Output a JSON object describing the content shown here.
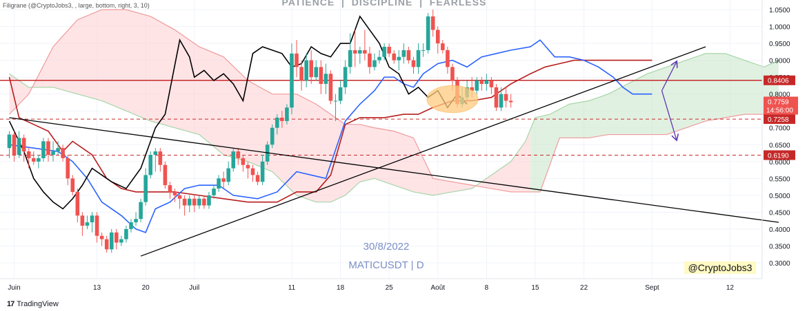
{
  "watermark_header": "Filigrane (@CryptoJobs3, , large, bottom, right, 3, 10)",
  "banner": "PATIENCE  |  DISCIPLINE  |  FEARLESS",
  "overlay_date": "30/8/2022",
  "overlay_symbol": "MATICUSDT | D",
  "signature": "@CryptoJobs3",
  "brand": "TradingView",
  "colors": {
    "up": "#26a69a",
    "down": "#ef5350",
    "conversion": "#2962ff",
    "base": "#b71c1c",
    "lagging": "#000000",
    "cloud_bull": "#c8e6c9",
    "cloud_bear": "#ffcdd2",
    "level": "#c62828",
    "price_badge": "#ef5350"
  },
  "chart_data": {
    "type": "candlestick",
    "symbol": "MATICUSDT",
    "timeframe": "D",
    "ylim": [
      0.26,
      1.07
    ],
    "y_ticks": [
      "1.0500",
      "1.0000",
      "0.9500",
      "0.9000",
      "0.8500",
      "0.8000",
      "0.7500",
      "0.7000",
      "0.6500",
      "0.6000",
      "0.5500",
      "0.5000",
      "0.4500",
      "0.4000",
      "0.3500",
      "0.3000"
    ],
    "x_ticks": [
      {
        "label": "Juin",
        "i": 2
      },
      {
        "label": "13",
        "i": 19
      },
      {
        "label": "20",
        "i": 29
      },
      {
        "label": "Juil",
        "i": 39
      },
      {
        "label": "11",
        "i": 59
      },
      {
        "label": "18",
        "i": 69
      },
      {
        "label": "25",
        "i": 79
      },
      {
        "label": "Août",
        "i": 89
      },
      {
        "label": "8",
        "i": 99
      },
      {
        "label": "15",
        "i": 109
      },
      {
        "label": "22",
        "i": 119
      },
      {
        "label": "Sept",
        "i": 133
      },
      {
        "label": "12",
        "i": 149
      }
    ],
    "candles_first_index": 1,
    "candles": [
      [
        0.64,
        0.68,
        0.69,
        0.61
      ],
      [
        0.68,
        0.62,
        0.69,
        0.6
      ],
      [
        0.62,
        0.67,
        0.69,
        0.61
      ],
      [
        0.67,
        0.63,
        0.68,
        0.6
      ],
      [
        0.63,
        0.61,
        0.64,
        0.58
      ],
      [
        0.61,
        0.6,
        0.63,
        0.59
      ],
      [
        0.6,
        0.61,
        0.62,
        0.58
      ],
      [
        0.61,
        0.66,
        0.67,
        0.6
      ],
      [
        0.66,
        0.62,
        0.67,
        0.6
      ],
      [
        0.62,
        0.63,
        0.66,
        0.6
      ],
      [
        0.63,
        0.64,
        0.66,
        0.62
      ],
      [
        0.64,
        0.61,
        0.65,
        0.6
      ],
      [
        0.61,
        0.55,
        0.62,
        0.53
      ],
      [
        0.55,
        0.51,
        0.56,
        0.5
      ],
      [
        0.51,
        0.44,
        0.52,
        0.42
      ],
      [
        0.44,
        0.41,
        0.45,
        0.38
      ],
      [
        0.41,
        0.42,
        0.44,
        0.4
      ],
      [
        0.42,
        0.44,
        0.45,
        0.39
      ],
      [
        0.44,
        0.38,
        0.45,
        0.36
      ],
      [
        0.38,
        0.37,
        0.39,
        0.35
      ],
      [
        0.37,
        0.34,
        0.38,
        0.33
      ],
      [
        0.34,
        0.39,
        0.4,
        0.33
      ],
      [
        0.39,
        0.36,
        0.4,
        0.34
      ],
      [
        0.36,
        0.37,
        0.38,
        0.35
      ],
      [
        0.37,
        0.4,
        0.41,
        0.36
      ],
      [
        0.4,
        0.42,
        0.43,
        0.39
      ],
      [
        0.42,
        0.43,
        0.45,
        0.41
      ],
      [
        0.43,
        0.48,
        0.49,
        0.42
      ],
      [
        0.48,
        0.56,
        0.58,
        0.47
      ],
      [
        0.56,
        0.62,
        0.63,
        0.55
      ],
      [
        0.62,
        0.63,
        0.64,
        0.57
      ],
      [
        0.63,
        0.59,
        0.64,
        0.57
      ],
      [
        0.59,
        0.53,
        0.6,
        0.52
      ],
      [
        0.53,
        0.51,
        0.54,
        0.49
      ],
      [
        0.51,
        0.5,
        0.52,
        0.48
      ],
      [
        0.5,
        0.49,
        0.51,
        0.46
      ],
      [
        0.49,
        0.47,
        0.5,
        0.44
      ],
      [
        0.47,
        0.49,
        0.5,
        0.45
      ],
      [
        0.49,
        0.47,
        0.5,
        0.45
      ],
      [
        0.47,
        0.49,
        0.5,
        0.46
      ],
      [
        0.49,
        0.47,
        0.5,
        0.46
      ],
      [
        0.47,
        0.5,
        0.51,
        0.46
      ],
      [
        0.5,
        0.52,
        0.53,
        0.49
      ],
      [
        0.52,
        0.55,
        0.56,
        0.51
      ],
      [
        0.55,
        0.54,
        0.57,
        0.52
      ],
      [
        0.54,
        0.58,
        0.6,
        0.53
      ],
      [
        0.58,
        0.63,
        0.64,
        0.57
      ],
      [
        0.63,
        0.61,
        0.64,
        0.59
      ],
      [
        0.61,
        0.59,
        0.62,
        0.57
      ],
      [
        0.59,
        0.58,
        0.6,
        0.55
      ],
      [
        0.58,
        0.56,
        0.59,
        0.54
      ],
      [
        0.56,
        0.54,
        0.57,
        0.53
      ],
      [
        0.54,
        0.6,
        0.62,
        0.53
      ],
      [
        0.6,
        0.65,
        0.66,
        0.59
      ],
      [
        0.65,
        0.7,
        0.71,
        0.64
      ],
      [
        0.7,
        0.73,
        0.74,
        0.68
      ],
      [
        0.73,
        0.72,
        0.75,
        0.7
      ],
      [
        0.72,
        0.76,
        0.77,
        0.71
      ],
      [
        0.76,
        0.92,
        0.95,
        0.74
      ],
      [
        0.92,
        0.88,
        0.96,
        0.85
      ],
      [
        0.88,
        0.84,
        0.9,
        0.81
      ],
      [
        0.84,
        0.9,
        0.92,
        0.82
      ],
      [
        0.9,
        0.85,
        0.93,
        0.83
      ],
      [
        0.85,
        0.88,
        0.9,
        0.84
      ],
      [
        0.88,
        0.83,
        0.9,
        0.8
      ],
      [
        0.83,
        0.86,
        0.89,
        0.8
      ],
      [
        0.86,
        0.78,
        0.87,
        0.77
      ],
      [
        0.78,
        0.78,
        0.8,
        0.72
      ],
      [
        0.78,
        0.82,
        0.84,
        0.77
      ],
      [
        0.82,
        0.88,
        0.9,
        0.8
      ],
      [
        0.88,
        0.93,
        0.98,
        0.86
      ],
      [
        0.93,
        0.92,
        0.99,
        0.88
      ],
      [
        0.92,
        0.93,
        0.94,
        0.89
      ],
      [
        0.93,
        0.92,
        0.99,
        0.9
      ],
      [
        0.92,
        0.88,
        0.94,
        0.86
      ],
      [
        0.88,
        0.9,
        0.92,
        0.87
      ],
      [
        0.9,
        0.91,
        0.93,
        0.89
      ],
      [
        0.91,
        0.94,
        0.95,
        0.9
      ],
      [
        0.94,
        0.92,
        0.95,
        0.91
      ],
      [
        0.92,
        0.9,
        0.93,
        0.89
      ],
      [
        0.9,
        0.91,
        0.93,
        0.87
      ],
      [
        0.91,
        0.93,
        0.95,
        0.89
      ],
      [
        0.93,
        0.9,
        0.94,
        0.89
      ],
      [
        0.9,
        0.88,
        0.91,
        0.86
      ],
      [
        0.88,
        0.93,
        0.95,
        0.86
      ],
      [
        0.93,
        0.93,
        0.95,
        0.91
      ],
      [
        0.93,
        1.03,
        1.04,
        0.92
      ],
      [
        1.03,
        0.99,
        1.05,
        0.97
      ],
      [
        0.99,
        0.95,
        1.0,
        0.92
      ],
      [
        0.95,
        0.93,
        0.96,
        0.92
      ],
      [
        0.93,
        0.88,
        0.94,
        0.86
      ],
      [
        0.88,
        0.84,
        0.89,
        0.81
      ],
      [
        0.84,
        0.77,
        0.85,
        0.76
      ],
      [
        0.77,
        0.79,
        0.82,
        0.76
      ],
      [
        0.79,
        0.82,
        0.84,
        0.78
      ],
      [
        0.82,
        0.81,
        0.85,
        0.79
      ],
      [
        0.81,
        0.84,
        0.85,
        0.8
      ],
      [
        0.84,
        0.83,
        0.85,
        0.81
      ],
      [
        0.83,
        0.84,
        0.86,
        0.81
      ],
      [
        0.84,
        0.82,
        0.85,
        0.8
      ],
      [
        0.82,
        0.76,
        0.83,
        0.75
      ],
      [
        0.76,
        0.8,
        0.82,
        0.75
      ],
      [
        0.8,
        0.78,
        0.82,
        0.76
      ],
      [
        0.78,
        0.7759,
        0.8,
        0.76
      ]
    ],
    "conversion_line": [
      [
        1,
        0.65
      ],
      [
        6,
        0.64
      ],
      [
        11,
        0.63
      ],
      [
        14,
        0.6
      ],
      [
        17,
        0.55
      ],
      [
        20,
        0.48
      ],
      [
        24,
        0.44
      ],
      [
        27,
        0.4
      ],
      [
        29,
        0.39
      ],
      [
        31,
        0.46
      ],
      [
        34,
        0.48
      ],
      [
        37,
        0.52
      ],
      [
        40,
        0.53
      ],
      [
        44,
        0.53
      ],
      [
        47,
        0.5
      ],
      [
        52,
        0.49
      ],
      [
        56,
        0.51
      ],
      [
        60,
        0.57
      ],
      [
        63,
        0.56
      ],
      [
        66,
        0.55
      ],
      [
        70,
        0.72
      ],
      [
        73,
        0.77
      ],
      [
        76,
        0.81
      ],
      [
        78,
        0.85
      ],
      [
        80,
        0.85
      ],
      [
        82,
        0.83
      ],
      [
        84,
        0.82
      ],
      [
        86,
        0.86
      ],
      [
        89,
        0.89
      ],
      [
        92,
        0.9
      ],
      [
        95,
        0.88
      ],
      [
        98,
        0.91
      ],
      [
        101,
        0.92
      ],
      [
        104,
        0.93
      ],
      [
        108,
        0.94
      ],
      [
        110,
        0.96
      ],
      [
        113,
        0.91
      ],
      [
        116,
        0.91
      ],
      [
        119,
        0.9
      ],
      [
        122,
        0.88
      ],
      [
        125,
        0.85
      ],
      [
        127,
        0.82
      ],
      [
        129,
        0.8
      ],
      [
        133,
        0.8
      ]
    ],
    "base_line": [
      [
        1,
        0.85
      ],
      [
        3,
        0.73
      ],
      [
        6,
        0.71
      ],
      [
        9,
        0.69
      ],
      [
        12,
        0.63
      ],
      [
        14,
        0.66
      ],
      [
        18,
        0.62
      ],
      [
        21,
        0.55
      ],
      [
        24,
        0.52
      ],
      [
        27,
        0.51
      ],
      [
        31,
        0.51
      ],
      [
        35,
        0.51
      ],
      [
        40,
        0.5
      ],
      [
        45,
        0.49
      ],
      [
        50,
        0.48
      ],
      [
        56,
        0.48
      ],
      [
        60,
        0.51
      ],
      [
        64,
        0.51
      ],
      [
        67,
        0.56
      ],
      [
        70,
        0.71
      ],
      [
        73,
        0.73
      ],
      [
        78,
        0.73
      ],
      [
        82,
        0.74
      ],
      [
        85,
        0.74
      ],
      [
        88,
        0.76
      ],
      [
        92,
        0.78
      ],
      [
        96,
        0.78
      ],
      [
        100,
        0.79
      ],
      [
        104,
        0.83
      ],
      [
        108,
        0.86
      ],
      [
        111,
        0.88
      ],
      [
        114,
        0.89
      ],
      [
        117,
        0.9
      ],
      [
        121,
        0.9
      ],
      [
        126,
        0.9
      ],
      [
        133,
        0.9
      ]
    ],
    "lagging_span": [
      [
        1,
        0.72
      ],
      [
        4,
        0.63
      ],
      [
        6,
        0.55
      ],
      [
        8,
        0.51
      ],
      [
        10,
        0.48
      ],
      [
        12,
        0.46
      ],
      [
        14,
        0.49
      ],
      [
        16,
        0.53
      ],
      [
        18,
        0.58
      ],
      [
        20,
        0.56
      ],
      [
        22,
        0.54
      ],
      [
        25,
        0.52
      ],
      [
        28,
        0.58
      ],
      [
        31,
        0.7
      ],
      [
        33,
        0.74
      ],
      [
        36,
        0.96
      ],
      [
        38,
        0.91
      ],
      [
        39,
        0.85
      ],
      [
        41,
        0.87
      ],
      [
        43,
        0.84
      ],
      [
        45,
        0.86
      ],
      [
        47,
        0.83
      ],
      [
        49,
        0.78
      ],
      [
        51,
        0.92
      ],
      [
        53,
        0.94
      ],
      [
        55,
        0.93
      ],
      [
        57,
        0.92
      ],
      [
        59,
        0.88
      ],
      [
        61,
        0.89
      ],
      [
        63,
        0.94
      ],
      [
        65,
        0.92
      ],
      [
        67,
        0.91
      ],
      [
        69,
        0.95
      ],
      [
        71,
        0.95
      ],
      [
        73,
        1.03
      ],
      [
        75,
        0.99
      ],
      [
        77,
        0.95
      ],
      [
        79,
        0.88
      ],
      [
        81,
        0.86
      ],
      [
        83,
        0.8
      ],
      [
        85,
        0.82
      ],
      [
        87,
        0.79
      ],
      [
        89,
        0.81
      ],
      [
        91,
        0.76
      ],
      [
        93,
        0.8
      ],
      [
        95,
        0.77
      ]
    ],
    "cloud_span_a": [
      [
        1,
        0.86
      ],
      [
        5,
        0.82
      ],
      [
        10,
        0.82
      ],
      [
        15,
        0.8
      ],
      [
        20,
        0.78
      ],
      [
        25,
        0.75
      ],
      [
        30,
        0.72
      ],
      [
        35,
        0.7
      ],
      [
        40,
        0.68
      ],
      [
        45,
        0.62
      ],
      [
        50,
        0.6
      ],
      [
        55,
        0.57
      ],
      [
        60,
        0.5
      ],
      [
        64,
        0.48
      ],
      [
        67,
        0.48
      ],
      [
        70,
        0.5
      ],
      [
        73,
        0.54
      ],
      [
        76,
        0.55
      ],
      [
        80,
        0.53
      ],
      [
        84,
        0.51
      ],
      [
        88,
        0.5
      ],
      [
        92,
        0.51
      ],
      [
        96,
        0.52
      ],
      [
        100,
        0.56
      ],
      [
        104,
        0.6
      ],
      [
        107,
        0.66
      ],
      [
        109,
        0.73
      ],
      [
        112,
        0.74
      ],
      [
        116,
        0.77
      ],
      [
        120,
        0.78
      ],
      [
        124,
        0.8
      ],
      [
        128,
        0.83
      ],
      [
        132,
        0.86
      ],
      [
        136,
        0.88
      ],
      [
        140,
        0.9
      ],
      [
        144,
        0.92
      ],
      [
        148,
        0.92
      ],
      [
        152,
        0.9
      ],
      [
        156,
        0.88
      ],
      [
        159,
        0.9
      ]
    ],
    "cloud_span_b": [
      [
        1,
        0.74
      ],
      [
        5,
        0.8
      ],
      [
        10,
        0.94
      ],
      [
        15,
        1.02
      ],
      [
        20,
        1.05
      ],
      [
        25,
        1.05
      ],
      [
        30,
        1.03
      ],
      [
        35,
        0.99
      ],
      [
        40,
        0.94
      ],
      [
        45,
        0.91
      ],
      [
        50,
        0.84
      ],
      [
        55,
        0.8
      ],
      [
        60,
        0.8
      ],
      [
        64,
        0.77
      ],
      [
        67,
        0.74
      ],
      [
        70,
        0.71
      ],
      [
        73,
        0.71
      ],
      [
        76,
        0.7
      ],
      [
        80,
        0.69
      ],
      [
        84,
        0.67
      ],
      [
        88,
        0.55
      ],
      [
        92,
        0.54
      ],
      [
        96,
        0.53
      ],
      [
        100,
        0.52
      ],
      [
        104,
        0.51
      ],
      [
        107,
        0.51
      ],
      [
        110,
        0.51
      ],
      [
        114,
        0.67
      ],
      [
        120,
        0.67
      ],
      [
        124,
        0.68
      ],
      [
        128,
        0.68
      ],
      [
        132,
        0.68
      ],
      [
        136,
        0.68
      ],
      [
        140,
        0.7
      ],
      [
        144,
        0.72
      ],
      [
        148,
        0.73
      ],
      [
        152,
        0.74
      ],
      [
        156,
        0.74
      ],
      [
        159,
        0.75
      ]
    ],
    "cloud_sign_changes": [
      [
        [
          1,
          108
        ],
        "bear"
      ],
      [
        [
          108,
          159
        ],
        "bull"
      ]
    ],
    "horizontal_levels": [
      {
        "value": 0.8406,
        "label": "0.8406",
        "style": "solid"
      },
      {
        "value": 0.7258,
        "label": "0.7258",
        "style": "dashed"
      },
      {
        "value": 0.619,
        "label": "0.6190",
        "style": "dashed"
      }
    ],
    "current_price": {
      "value": 0.7759,
      "label": "0.7759",
      "countdown": "14:56:00"
    },
    "trendlines": [
      {
        "from": [
          1,
          0.73
        ],
        "to": [
          159,
          0.42
        ]
      },
      {
        "from": [
          28,
          0.32
        ],
        "to": [
          144,
          0.94
        ]
      }
    ],
    "projection_arrows": [
      {
        "from": [
          135,
          0.81
        ],
        "to": [
          138,
          0.895
        ]
      },
      {
        "from": [
          135,
          0.81
        ],
        "to": [
          138,
          0.665
        ]
      }
    ],
    "highlight_ellipse": {
      "center": [
        92,
        0.785
      ],
      "rx": 3.5,
      "ry": 0.04
    }
  }
}
